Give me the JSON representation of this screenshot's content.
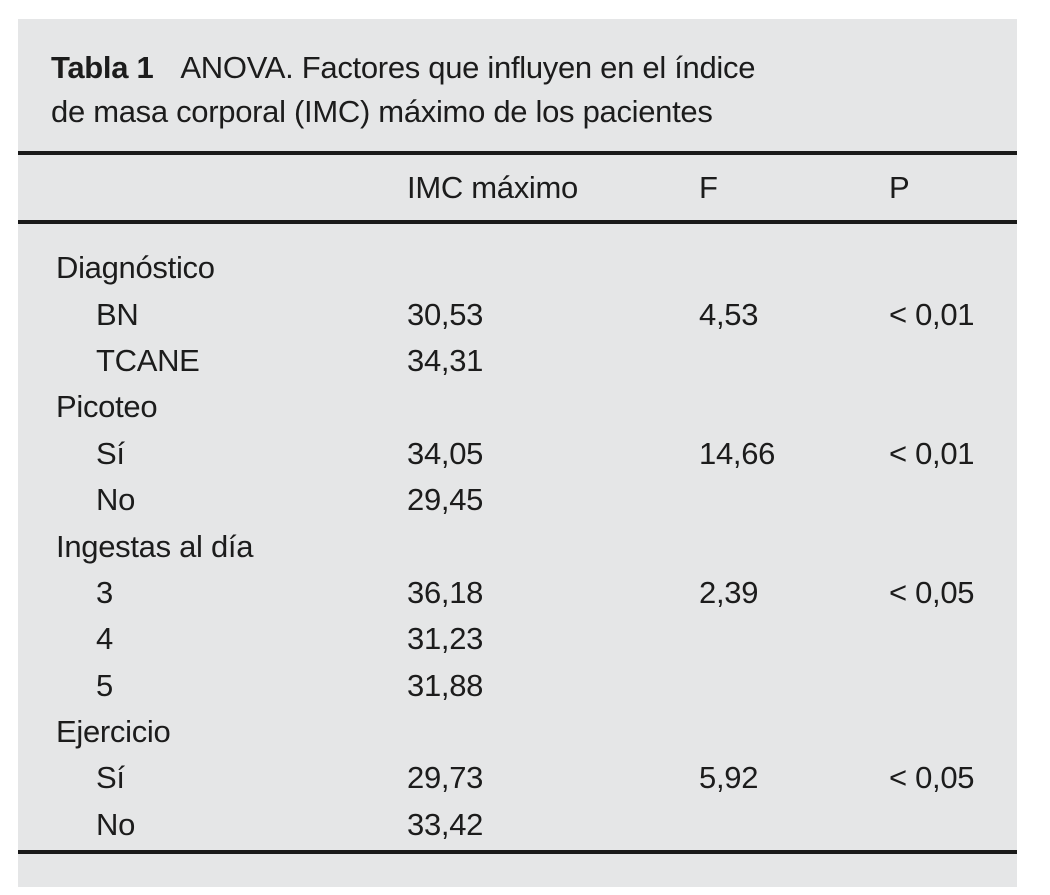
{
  "page": {
    "background": "#ffffff",
    "panel_background": "#e5e6e7",
    "text_color": "#1c1c1c",
    "rule_color": "#1a1a1a"
  },
  "table": {
    "label": "Tabla 1",
    "caption_line1": "ANOVA. Factores que influyen en el índice",
    "caption_line2": "de masa corporal (IMC) máximo de los pacientes",
    "columns": [
      "",
      "IMC máximo",
      "F",
      "P"
    ],
    "rows": [
      {
        "label": "Diagnóstico",
        "indent": false
      },
      {
        "label": "BN",
        "indent": true,
        "imc": "30,53",
        "f": "4,53",
        "p": "< 0,01"
      },
      {
        "label": "TCANE",
        "indent": true,
        "imc": "34,31"
      },
      {
        "label": "Picoteo",
        "indent": false
      },
      {
        "label": "Sí",
        "indent": true,
        "imc": "34,05",
        "f": "14,66",
        "p": "< 0,01"
      },
      {
        "label": "No",
        "indent": true,
        "imc": "29,45"
      },
      {
        "label": "Ingestas al día",
        "indent": false
      },
      {
        "label": "3",
        "indent": true,
        "imc": "36,18",
        "f": "2,39",
        "p": "< 0,05"
      },
      {
        "label": "4",
        "indent": true,
        "imc": "31,23"
      },
      {
        "label": "5",
        "indent": true,
        "imc": "31,88"
      },
      {
        "label": "Ejercicio",
        "indent": false
      },
      {
        "label": "Sí",
        "indent": true,
        "imc": "29,73",
        "f": "5,92",
        "p": "< 0,05"
      },
      {
        "label": "No",
        "indent": true,
        "imc": "33,42"
      }
    ]
  }
}
